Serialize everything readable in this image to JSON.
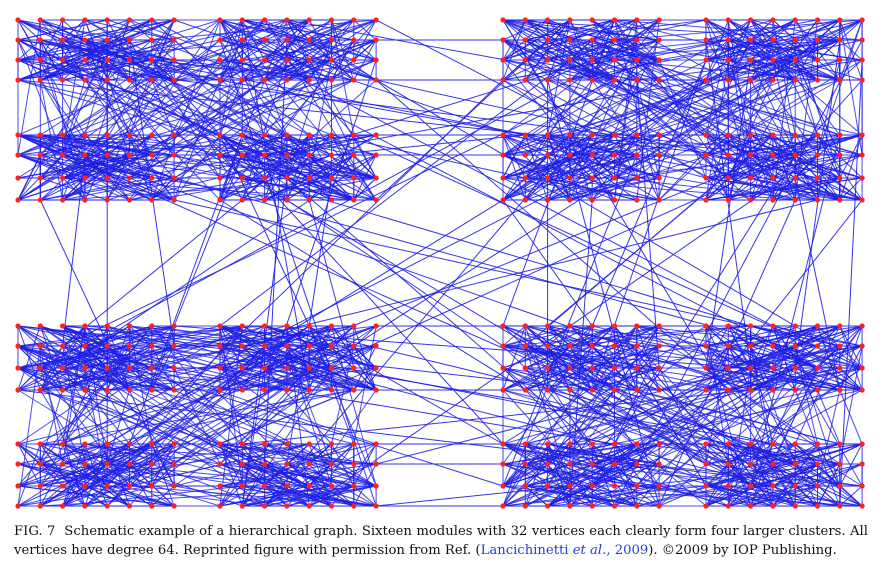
{
  "figure": {
    "edge_color": "#1f1fe6",
    "node_color": "#ff2020",
    "background": "#ffffff"
  },
  "caption": {
    "label": "FIG. 7",
    "text_1": "Schematic example of a hierarchical graph. Sixteen modules with 32 vertices each clearly form four larger clusters. All vertices have degree 64. Reprinted figure with permission from Ref. (",
    "ref_author": "Lancichinetti",
    "ref_etal": "et al.",
    "ref_year": "2009",
    "text_2": "). ",
    "copyright": "©2009 by IOP Publishing."
  }
}
